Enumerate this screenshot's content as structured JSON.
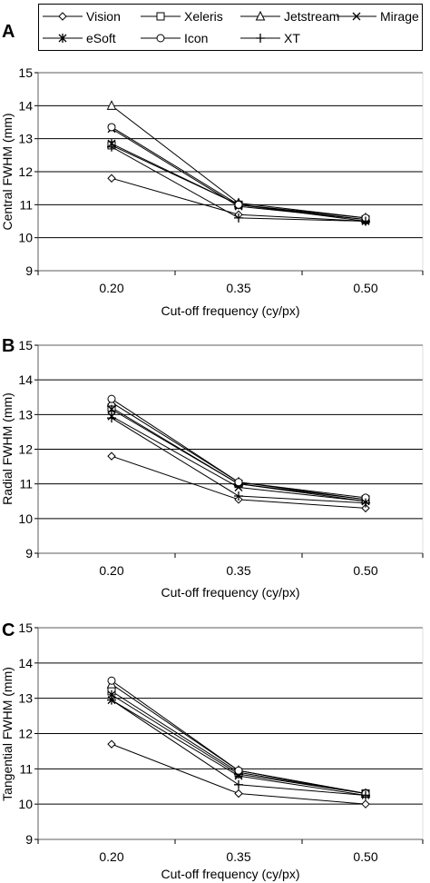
{
  "legend": [
    {
      "name": "Vision",
      "marker": "diamond"
    },
    {
      "name": "Xeleris",
      "marker": "square"
    },
    {
      "name": "Jetstream",
      "marker": "triangle"
    },
    {
      "name": "Mirage",
      "marker": "x"
    },
    {
      "name": "eSoft",
      "marker": "star"
    },
    {
      "name": "Icon",
      "marker": "circle"
    },
    {
      "name": "XT",
      "marker": "plus"
    }
  ],
  "chart_data": [
    {
      "type": "line",
      "panel_label": "A",
      "categories": [
        "0.20",
        "0.35",
        "0.50"
      ],
      "xlabel": "Cut-off frequency (cy/px)",
      "ylabel": "Central FWHM (mm)",
      "ylim": [
        9,
        15
      ],
      "yticks": [
        "9",
        "10",
        "11",
        "12",
        "13",
        "14",
        "15"
      ],
      "grid": true,
      "series": [
        {
          "name": "Vision",
          "marker": "diamond",
          "values": [
            11.8,
            10.7,
            10.5
          ]
        },
        {
          "name": "Xeleris",
          "marker": "square",
          "values": [
            12.8,
            11.0,
            10.55
          ]
        },
        {
          "name": "Jetstream",
          "marker": "triangle",
          "values": [
            14.0,
            11.05,
            10.6
          ]
        },
        {
          "name": "Mirage",
          "marker": "x",
          "values": [
            13.3,
            10.95,
            10.55
          ]
        },
        {
          "name": "eSoft",
          "marker": "star",
          "values": [
            12.85,
            11.0,
            10.5
          ]
        },
        {
          "name": "Icon",
          "marker": "circle",
          "values": [
            13.35,
            11.0,
            10.6
          ]
        },
        {
          "name": "XT",
          "marker": "plus",
          "values": [
            12.75,
            10.6,
            10.5
          ]
        }
      ]
    },
    {
      "type": "line",
      "panel_label": "B",
      "categories": [
        "0.20",
        "0.35",
        "0.50"
      ],
      "xlabel": "Cut-off frequency (cy/px)",
      "ylabel": "Radial FWHM (mm)",
      "ylim": [
        9,
        15
      ],
      "yticks": [
        "9",
        "10",
        "11",
        "12",
        "13",
        "14",
        "15"
      ],
      "grid": true,
      "series": [
        {
          "name": "Vision",
          "marker": "diamond",
          "values": [
            11.8,
            10.55,
            10.3
          ]
        },
        {
          "name": "Xeleris",
          "marker": "square",
          "values": [
            13.2,
            11.0,
            10.55
          ]
        },
        {
          "name": "Jetstream",
          "marker": "triangle",
          "values": [
            13.35,
            11.05,
            10.55
          ]
        },
        {
          "name": "Mirage",
          "marker": "x",
          "values": [
            12.95,
            10.9,
            10.5
          ]
        },
        {
          "name": "eSoft",
          "marker": "star",
          "values": [
            13.15,
            11.0,
            10.5
          ]
        },
        {
          "name": "Icon",
          "marker": "circle",
          "values": [
            13.45,
            11.05,
            10.6
          ]
        },
        {
          "name": "XT",
          "marker": "plus",
          "values": [
            12.9,
            10.65,
            10.45
          ]
        }
      ]
    },
    {
      "type": "line",
      "panel_label": "C",
      "categories": [
        "0.20",
        "0.35",
        "0.50"
      ],
      "xlabel": "Cut-off frequency (cy/px)",
      "ylabel": "Tangential FWHM (mm)",
      "ylim": [
        9,
        15
      ],
      "yticks": [
        "9",
        "10",
        "11",
        "12",
        "13",
        "14",
        "15"
      ],
      "grid": true,
      "series": [
        {
          "name": "Vision",
          "marker": "diamond",
          "values": [
            11.7,
            10.3,
            10.0
          ]
        },
        {
          "name": "Xeleris",
          "marker": "square",
          "values": [
            13.2,
            10.9,
            10.3
          ]
        },
        {
          "name": "Jetstream",
          "marker": "triangle",
          "values": [
            13.4,
            10.95,
            10.3
          ]
        },
        {
          "name": "Mirage",
          "marker": "x",
          "values": [
            12.95,
            10.8,
            10.25
          ]
        },
        {
          "name": "eSoft",
          "marker": "star",
          "values": [
            13.1,
            10.85,
            10.3
          ]
        },
        {
          "name": "Icon",
          "marker": "circle",
          "values": [
            13.5,
            10.95,
            10.3
          ]
        },
        {
          "name": "XT",
          "marker": "plus",
          "values": [
            12.95,
            10.55,
            10.25
          ]
        }
      ]
    }
  ]
}
